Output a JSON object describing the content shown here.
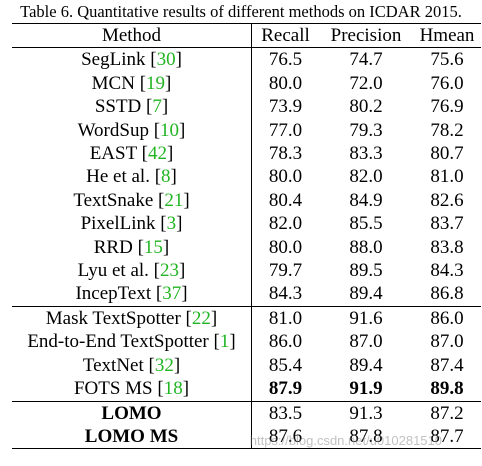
{
  "caption": "Table 6. Quantitative results of different methods on ICDAR 2015.",
  "headers": [
    "Method",
    "Recall",
    "Precision",
    "Hmean"
  ],
  "rows": [
    {
      "method": "SegLink",
      "ref": "30",
      "recall": "76.5",
      "precision": "74.7",
      "hmean": "75.6"
    },
    {
      "method": "MCN",
      "ref": "19",
      "recall": "80.0",
      "precision": "72.0",
      "hmean": "76.0"
    },
    {
      "method": "SSTD",
      "ref": "7",
      "recall": "73.9",
      "precision": "80.2",
      "hmean": "76.9"
    },
    {
      "method": "WordSup",
      "ref": "10",
      "recall": "77.0",
      "precision": "79.3",
      "hmean": "78.2"
    },
    {
      "method": "EAST",
      "ref": "42",
      "recall": "78.3",
      "precision": "83.3",
      "hmean": "80.7"
    },
    {
      "method": "He et al.",
      "ref": "8",
      "recall": "80.0",
      "precision": "82.0",
      "hmean": "81.0"
    },
    {
      "method": "TextSnake",
      "ref": "21",
      "recall": "80.4",
      "precision": "84.9",
      "hmean": "82.6"
    },
    {
      "method": "PixelLink",
      "ref": "3",
      "recall": "82.0",
      "precision": "85.5",
      "hmean": "83.7"
    },
    {
      "method": "RRD",
      "ref": "15",
      "recall": "80.0",
      "precision": "88.0",
      "hmean": "83.8"
    },
    {
      "method": "Lyu et al.",
      "ref": "23",
      "recall": "79.7",
      "precision": "89.5",
      "hmean": "84.3"
    },
    {
      "method": "IncepText",
      "ref": "37",
      "recall": "84.3",
      "precision": "89.4",
      "hmean": "86.8"
    },
    {
      "method": "Mask TextSpotter",
      "ref": "22",
      "recall": "81.0",
      "precision": "91.6",
      "hmean": "86.0"
    },
    {
      "method": "End-to-End TextSpotter",
      "ref": "1",
      "recall": "86.0",
      "precision": "87.0",
      "hmean": "87.0"
    },
    {
      "method": "TextNet",
      "ref": "32",
      "recall": "85.4",
      "precision": "89.4",
      "hmean": "87.4"
    },
    {
      "method": "FOTS MS",
      "ref": "18",
      "recall": "87.9",
      "precision": "91.9",
      "hmean": "89.8"
    },
    {
      "method": "LOMO",
      "ref": "",
      "recall": "83.5",
      "precision": "91.3",
      "hmean": "87.2"
    },
    {
      "method": "LOMO MS",
      "ref": "",
      "recall": "87.6",
      "precision": "87.8",
      "hmean": "87.7"
    }
  ],
  "watermark": "https://blog.csdn.net/u010281510"
}
